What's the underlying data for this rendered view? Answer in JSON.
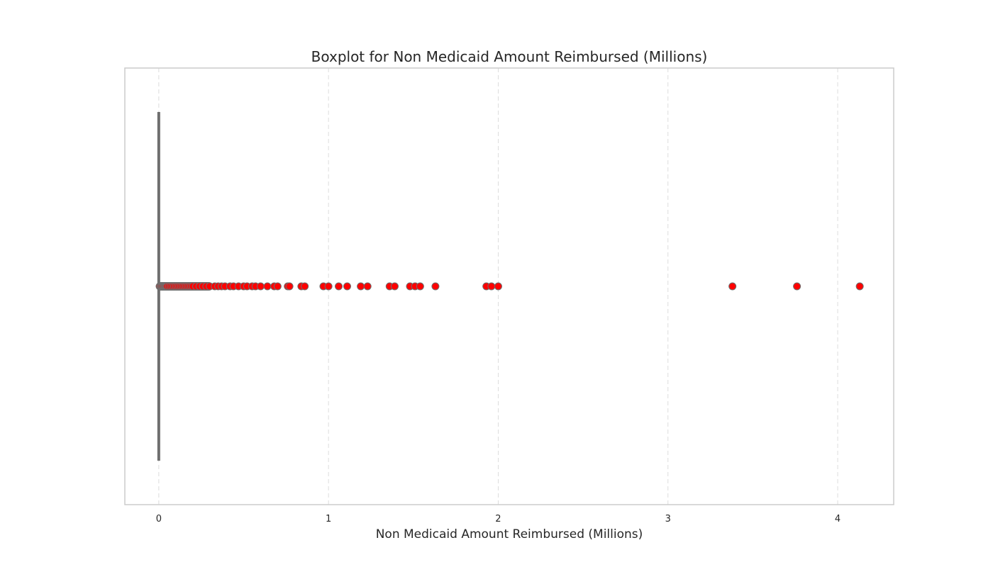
{
  "chart_data": {
    "type": "boxplot",
    "orientation": "horizontal",
    "title": "Boxplot for Non Medicaid Amount Reimbursed (Millions)",
    "xlabel": "Non Medicaid Amount Reimbursed (Millions)",
    "ylabel": "",
    "xlim": [
      -0.2,
      4.33
    ],
    "x_ticks": [
      0,
      1,
      2,
      3,
      4
    ],
    "x_tick_labels": [
      "0",
      "1",
      "2",
      "3",
      "4"
    ],
    "grid": "x-dashed",
    "box": {
      "min": 0,
      "q1": 0,
      "median": 0,
      "q3": 0,
      "max": 0
    },
    "box_color": "#6e6e6e",
    "outlier_color": "#ff0000",
    "outlier_edge_color": "#6e6e6e",
    "outliers": [
      0.005,
      0.01,
      0.015,
      0.02,
      0.025,
      0.03,
      0.035,
      0.04,
      0.045,
      0.05,
      0.06,
      0.07,
      0.08,
      0.09,
      0.1,
      0.11,
      0.12,
      0.13,
      0.14,
      0.15,
      0.16,
      0.17,
      0.18,
      0.19,
      0.2,
      0.22,
      0.24,
      0.26,
      0.28,
      0.3,
      0.33,
      0.35,
      0.37,
      0.39,
      0.42,
      0.44,
      0.47,
      0.5,
      0.52,
      0.55,
      0.57,
      0.6,
      0.64,
      0.68,
      0.7,
      0.76,
      0.77,
      0.84,
      0.86,
      0.97,
      1.0,
      1.06,
      1.11,
      1.19,
      1.23,
      1.36,
      1.39,
      1.48,
      1.51,
      1.54,
      1.63,
      1.93,
      1.96,
      2.0,
      3.38,
      3.76,
      4.13
    ]
  }
}
